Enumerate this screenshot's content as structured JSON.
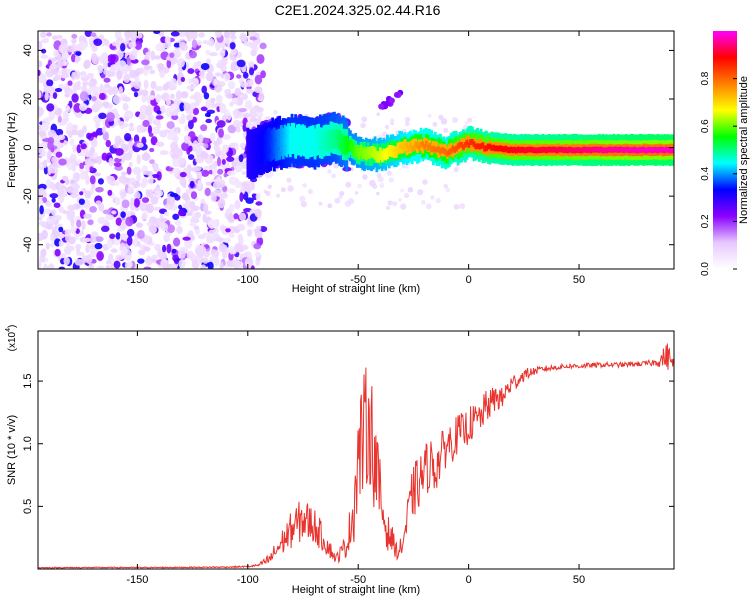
{
  "title": "C2E1.2024.325.02.44.R16",
  "chart_data": [
    {
      "type": "heatmap",
      "title": "C2E1.2024.325.02.44.R16",
      "xlabel": "Height of straight line (km)",
      "ylabel": "Frequency (Hz)",
      "xlim": [
        -195,
        93
      ],
      "ylim": [
        -50,
        48
      ],
      "x_ticks": [
        -150,
        -100,
        -50,
        0,
        50
      ],
      "y_ticks": [
        -40,
        -20,
        0,
        20,
        40
      ],
      "colorbar": {
        "label": "Normalized spectral amplitude",
        "range": [
          0,
          1
        ],
        "ticks": [
          0.0,
          0.2,
          0.4,
          0.6,
          0.8
        ],
        "tick_labels": [
          "0.0",
          "0.2",
          "0.4",
          "0.6",
          "0.8"
        ],
        "colors": [
          "#ffffff",
          "#e6c8ff",
          "#8a00ff",
          "#0000ff",
          "#00ffff",
          "#00ff00",
          "#ffff00",
          "#ff8000",
          "#ff0000",
          "#ff00ff"
        ]
      },
      "noise_region": {
        "x": [
          -195,
          -93
        ],
        "y": [
          -50,
          48
        ],
        "amplitude": [
          0.05,
          0.25
        ]
      },
      "signal_track": {
        "x": [
          -100,
          -90,
          -80,
          -70,
          -60,
          -50,
          -40,
          -30,
          -20,
          -10,
          0,
          10,
          20,
          40,
          60,
          80,
          93
        ],
        "y": [
          -3,
          1,
          3,
          2,
          4,
          -2,
          -3,
          0,
          1,
          -2,
          2,
          0,
          -1,
          -1,
          -1,
          -1,
          -1
        ],
        "amplitude": [
          0.3,
          0.35,
          0.45,
          0.45,
          0.5,
          0.6,
          0.65,
          0.72,
          0.78,
          0.8,
          0.85,
          0.88,
          0.9,
          0.92,
          0.95,
          0.97,
          0.97
        ]
      },
      "side_blob": {
        "x": [
          -40,
          -30
        ],
        "y": [
          16,
          23
        ],
        "amplitude": 0.2
      }
    },
    {
      "type": "line",
      "xlabel": "Height of straight line (km)",
      "ylabel": "SNR (10 * v/v)",
      "multiplier": "(x10^4)",
      "multiplier_base": "(x10",
      "multiplier_exp": "4",
      "multiplier_close": ")",
      "xlim": [
        -195,
        93
      ],
      "ylim": [
        0,
        1.9
      ],
      "x_ticks": [
        -150,
        -100,
        -50,
        0,
        50
      ],
      "y_ticks": [
        0.5,
        1.0,
        1.5
      ],
      "y_tick_labels": [
        "0.5",
        "1.0",
        "1.5"
      ],
      "color": "#e8332e",
      "series": [
        {
          "x": [
            -195,
            -170,
            -150,
            -130,
            -110,
            -100,
            -95,
            -90,
            -85,
            -80,
            -75,
            -70,
            -65,
            -60,
            -55,
            -52,
            -50,
            -47,
            -45,
            -43,
            -40,
            -37,
            -35,
            -32,
            -30,
            -27,
            -25,
            -22,
            -20,
            -17,
            -15,
            -12,
            -10,
            -7,
            -5,
            -2,
            0,
            3,
            5,
            8,
            10,
            13,
            15,
            18,
            20,
            23,
            25,
            28,
            30,
            35,
            40,
            45,
            50,
            60,
            70,
            80,
            85,
            88,
            90,
            92,
            93
          ],
          "y": [
            0.01,
            0.012,
            0.012,
            0.013,
            0.015,
            0.02,
            0.03,
            0.08,
            0.2,
            0.32,
            0.4,
            0.35,
            0.22,
            0.08,
            0.2,
            0.5,
            0.9,
            1.1,
            1.2,
            0.95,
            0.55,
            0.3,
            0.25,
            0.12,
            0.2,
            0.45,
            0.62,
            0.7,
            0.78,
            0.85,
            0.8,
            0.92,
            1.0,
            1.02,
            1.08,
            1.1,
            1.15,
            1.18,
            1.2,
            1.3,
            1.32,
            1.38,
            1.35,
            1.45,
            1.48,
            1.52,
            1.55,
            1.57,
            1.58,
            1.6,
            1.61,
            1.62,
            1.62,
            1.63,
            1.63,
            1.64,
            1.65,
            1.68,
            1.7,
            1.66,
            1.65
          ],
          "noise": [
            0.004,
            0.004,
            0.004,
            0.004,
            0.005,
            0.006,
            0.01,
            0.05,
            0.1,
            0.15,
            0.18,
            0.15,
            0.1,
            0.04,
            0.1,
            0.3,
            0.45,
            0.5,
            0.5,
            0.45,
            0.3,
            0.15,
            0.12,
            0.05,
            0.1,
            0.2,
            0.22,
            0.22,
            0.22,
            0.2,
            0.2,
            0.18,
            0.18,
            0.16,
            0.16,
            0.15,
            0.15,
            0.14,
            0.14,
            0.13,
            0.12,
            0.11,
            0.1,
            0.09,
            0.08,
            0.06,
            0.05,
            0.04,
            0.03,
            0.025,
            0.02,
            0.02,
            0.02,
            0.02,
            0.02,
            0.02,
            0.03,
            0.08,
            0.12,
            0.05,
            0.03
          ]
        }
      ]
    }
  ]
}
